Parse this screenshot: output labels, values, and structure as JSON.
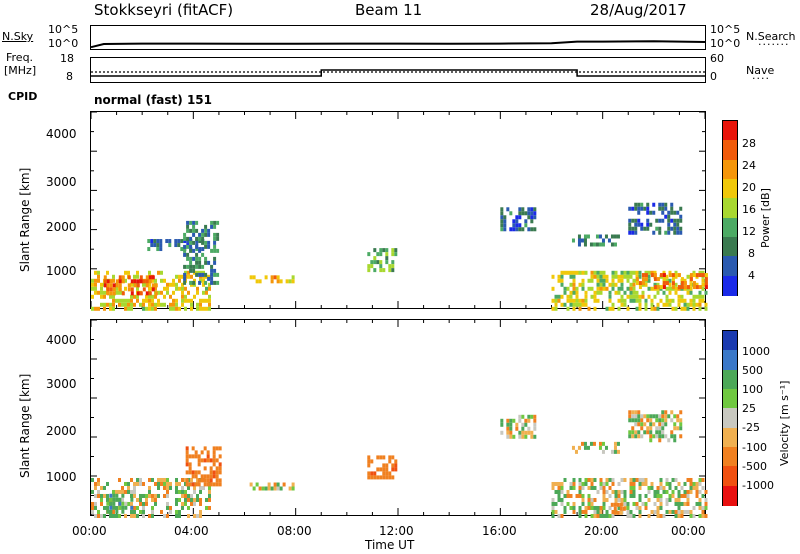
{
  "header": {
    "station": "Stokkseyri (fitACF)",
    "beam": "Beam 11",
    "date": "28/Aug/2017"
  },
  "noise_panel": {
    "left_label": "N.Sky",
    "left_ticks": [
      "10^5",
      "10^0"
    ],
    "right_label": "N.Search",
    "right_ticks": [
      "10^5",
      "10^0"
    ]
  },
  "freq_panel": {
    "left_label_1": "Freq.",
    "left_label_2": "[MHz]",
    "left_ticks": [
      "18",
      "8"
    ],
    "right_label": "Nave",
    "right_ticks": [
      "60",
      "0"
    ]
  },
  "cpid_panel": {
    "label": "CPID",
    "value": "normal (fast) 151"
  },
  "power_panel": {
    "ylabel": "Slant Range [km]",
    "yticks": [
      "4000",
      "3000",
      "2000",
      "1000"
    ],
    "colorbar_label": "Power [dB]",
    "colorbar_ticks": [
      "28",
      "24",
      "20",
      "16",
      "12",
      "8",
      "4"
    ],
    "colorbar_colors": [
      "#e8140a",
      "#f05a0a",
      "#f5960a",
      "#f0c80a",
      "#a8d830",
      "#4caa64",
      "#3a7a50",
      "#2a5ab0",
      "#1a2ae8"
    ]
  },
  "velocity_panel": {
    "ylabel": "Slant Range [km]",
    "yticks": [
      "4000",
      "3000",
      "2000",
      "1000"
    ],
    "colorbar_label": "Velocity [m s⁻¹]",
    "colorbar_ticks": [
      "1000",
      "500",
      "100",
      "25",
      "-25",
      "-100",
      "-500",
      "-1000"
    ],
    "colorbar_colors": [
      "#1a3ab0",
      "#3a78c8",
      "#4ca858",
      "#70c840",
      "#c8c8c0",
      "#f0b050",
      "#f08020",
      "#f05010",
      "#e81010"
    ]
  },
  "xaxis": {
    "ticks": [
      "00:00",
      "04:00",
      "08:00",
      "12:00",
      "16:00",
      "20:00",
      "00:00"
    ],
    "label": "Time UT"
  },
  "chart_data": [
    {
      "type": "line",
      "name": "noise",
      "x": [
        0,
        0.5,
        2,
        4,
        6,
        8,
        10,
        12,
        14,
        16,
        18,
        19,
        20,
        22,
        24
      ],
      "y_log10": [
        0.2,
        1.0,
        1.1,
        1.1,
        1.05,
        1.05,
        1.1,
        1.1,
        1.05,
        1.1,
        1.2,
        1.6,
        1.6,
        1.7,
        1.5
      ]
    },
    {
      "type": "step",
      "name": "nave_and_freq",
      "nave_x": [
        0,
        9,
        9,
        19,
        19,
        24
      ],
      "nave_y": [
        12,
        12,
        30,
        30,
        12,
        12
      ],
      "freq_dotted_mhz": 12
    },
    {
      "type": "heatmap",
      "name": "power",
      "x_range": [
        0,
        24
      ],
      "y_range": [
        180,
        4500
      ],
      "blobs": [
        {
          "t0": 0.0,
          "t1": 4.6,
          "r0": 180,
          "r1": 1000,
          "value": 18
        },
        {
          "t0": 0.5,
          "t1": 2.5,
          "r0": 500,
          "r1": 900,
          "value": 26
        },
        {
          "t0": 6.2,
          "t1": 7.9,
          "r0": 750,
          "r1": 900,
          "value": 20
        },
        {
          "t0": 2.2,
          "t1": 4.4,
          "r0": 1500,
          "r1": 1700,
          "value": 6
        },
        {
          "t0": 3.6,
          "t1": 5.0,
          "r0": 700,
          "r1": 2100,
          "value": 8
        },
        {
          "t0": 10.8,
          "t1": 11.9,
          "r0": 1050,
          "r1": 1500,
          "value": 12
        },
        {
          "t0": 16.0,
          "t1": 17.4,
          "r0": 1900,
          "r1": 2400,
          "value": 5
        },
        {
          "t0": 18.8,
          "t1": 20.6,
          "r0": 1550,
          "r1": 1800,
          "value": 7
        },
        {
          "t0": 18.0,
          "t1": 24.0,
          "r0": 180,
          "r1": 1000,
          "value": 16
        },
        {
          "t0": 21.3,
          "t1": 24.0,
          "r0": 600,
          "r1": 950,
          "value": 24
        },
        {
          "t0": 21.0,
          "t1": 23.0,
          "r0": 1800,
          "r1": 2500,
          "value": 5
        }
      ]
    },
    {
      "type": "heatmap",
      "name": "velocity",
      "x_range": [
        0,
        24
      ],
      "y_range": [
        180,
        4500
      ],
      "blobs": [
        {
          "t0": 0.0,
          "t1": 4.6,
          "r0": 180,
          "r1": 1000,
          "value": 0
        },
        {
          "t0": 0.6,
          "t1": 1.6,
          "r0": 250,
          "r1": 650,
          "value": 150
        },
        {
          "t0": 6.2,
          "t1": 7.9,
          "r0": 750,
          "r1": 900,
          "value": 0
        },
        {
          "t0": 3.7,
          "t1": 5.0,
          "r0": 900,
          "r1": 1700,
          "value": -300
        },
        {
          "t0": 10.8,
          "t1": 11.9,
          "r0": 1050,
          "r1": 1500,
          "value": -300
        },
        {
          "t0": 16.0,
          "t1": 17.4,
          "r0": 1900,
          "r1": 2400,
          "value": 0
        },
        {
          "t0": 18.8,
          "t1": 20.6,
          "r0": 1550,
          "r1": 1800,
          "value": 0
        },
        {
          "t0": 18.0,
          "t1": 24.0,
          "r0": 180,
          "r1": 1000,
          "value": 0
        },
        {
          "t0": 20.2,
          "t1": 20.9,
          "r0": 250,
          "r1": 450,
          "value": -200
        },
        {
          "t0": 21.0,
          "t1": 23.0,
          "r0": 1800,
          "r1": 2500,
          "value": 0
        }
      ]
    }
  ]
}
